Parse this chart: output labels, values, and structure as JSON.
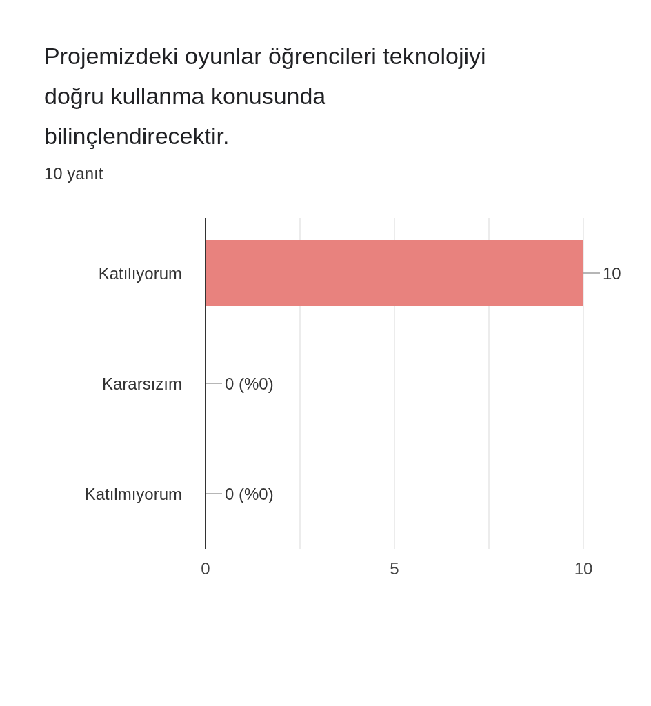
{
  "chart_data": {
    "type": "bar",
    "orientation": "horizontal",
    "title": "Projemizdeki oyunlar öğrencileri teknolojiyi doğru kullanma konusunda bilinçlendirecektir.",
    "subtitle": "10 yanıt",
    "categories": [
      "Katılıyorum",
      "Kararsızım",
      "Katılmıyorum"
    ],
    "values": [
      10,
      0,
      0
    ],
    "color": "#e8827e",
    "value_labels": [
      "10",
      "0 (%0)",
      "0 (%0)"
    ],
    "xlim": [
      0,
      10
    ],
    "xticks": [
      0,
      {
        "value": 2.5,
        "label": null
      },
      5,
      {
        "value": 7.5,
        "label": null
      },
      10
    ],
    "grid": "x"
  }
}
